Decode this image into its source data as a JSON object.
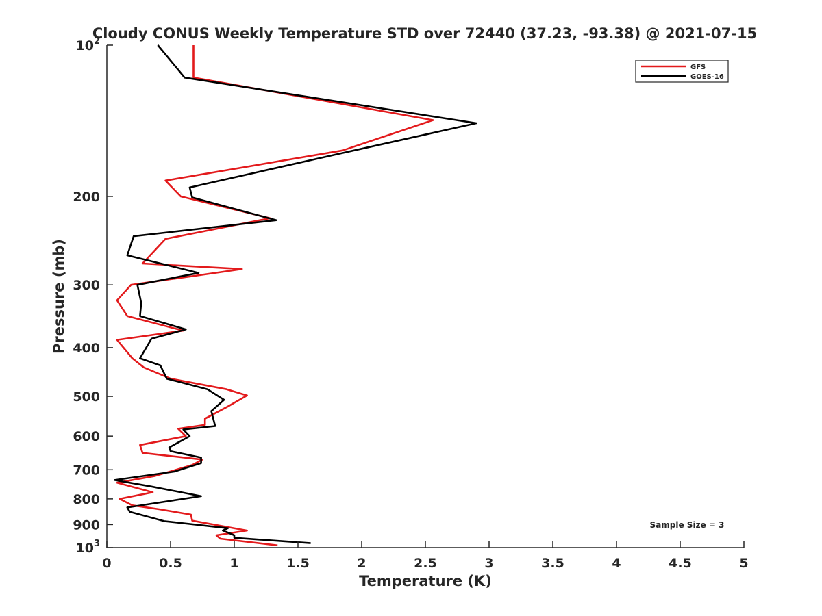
{
  "chart_data": {
    "type": "line",
    "title": "Cloudy CONUS Weekly Temperature STD over 72440 (37.23, -93.38) @ 2021-07-15",
    "xlabel": "Temperature (K)",
    "ylabel": "Pressure (mb)",
    "xlim": [
      0,
      5
    ],
    "ylim": [
      100,
      1000
    ],
    "y_scale": "log",
    "y_reversed": true,
    "grid": false,
    "legend_position": "top-right",
    "annotation": "Sample Size = 3",
    "x_ticks": [
      0,
      0.5,
      1,
      1.5,
      2,
      2.5,
      3,
      3.5,
      4,
      4.5,
      5
    ],
    "x_tick_labels": [
      "0",
      "0.5",
      "1",
      "1.5",
      "2",
      "2.5",
      "3",
      "3.5",
      "4",
      "4.5",
      "5"
    ],
    "y_ticks": [
      200,
      300,
      400,
      500,
      600,
      700,
      800,
      900
    ],
    "y_tick_labels": [
      "200",
      "300",
      "400",
      "500",
      "600",
      "700",
      "800",
      "900"
    ],
    "y_decade_ticks": [
      {
        "value": 100,
        "base": "10",
        "exp": "2"
      },
      {
        "value": 1000,
        "base": "10",
        "exp": "3"
      }
    ],
    "series": [
      {
        "name": "GFS",
        "color": "#e31a1c",
        "points": [
          [
            0.68,
            100
          ],
          [
            0.68,
            116
          ],
          [
            2.56,
            141
          ],
          [
            1.85,
            162
          ],
          [
            0.46,
            186
          ],
          [
            0.58,
            200
          ],
          [
            1.28,
            221
          ],
          [
            0.46,
            243
          ],
          [
            0.28,
            272
          ],
          [
            1.06,
            279
          ],
          [
            0.19,
            300
          ],
          [
            0.08,
            322
          ],
          [
            0.16,
            346
          ],
          [
            0.6,
            370
          ],
          [
            0.08,
            386
          ],
          [
            0.2,
            420
          ],
          [
            0.29,
            438
          ],
          [
            0.5,
            461
          ],
          [
            0.94,
            484
          ],
          [
            1.1,
            498
          ],
          [
            0.96,
            522
          ],
          [
            0.77,
            554
          ],
          [
            0.77,
            570
          ],
          [
            0.56,
            580
          ],
          [
            0.62,
            600
          ],
          [
            0.26,
            625
          ],
          [
            0.28,
            648
          ],
          [
            0.75,
            668
          ],
          [
            0.67,
            685
          ],
          [
            0.38,
            720
          ],
          [
            0.08,
            743
          ],
          [
            0.36,
            776
          ],
          [
            0.1,
            800
          ],
          [
            0.2,
            824
          ],
          [
            0.41,
            839
          ],
          [
            0.66,
            860
          ],
          [
            0.67,
            884
          ],
          [
            1.1,
            925
          ],
          [
            0.86,
            945
          ],
          [
            0.89,
            960
          ],
          [
            1.34,
            990
          ]
        ]
      },
      {
        "name": "GOES-16",
        "color": "#000000",
        "points": [
          [
            0.4,
            100
          ],
          [
            0.61,
            116
          ],
          [
            2.9,
            143
          ],
          [
            1.8,
            165
          ],
          [
            0.65,
            192
          ],
          [
            0.67,
            201
          ],
          [
            1.33,
            223
          ],
          [
            0.21,
            240
          ],
          [
            0.16,
            262
          ],
          [
            0.72,
            284
          ],
          [
            0.24,
            300
          ],
          [
            0.27,
            326
          ],
          [
            0.26,
            346
          ],
          [
            0.62,
            368
          ],
          [
            0.35,
            384
          ],
          [
            0.26,
            420
          ],
          [
            0.42,
            434
          ],
          [
            0.47,
            461
          ],
          [
            0.79,
            484
          ],
          [
            0.92,
            508
          ],
          [
            0.82,
            535
          ],
          [
            0.85,
            573
          ],
          [
            0.6,
            582
          ],
          [
            0.65,
            600
          ],
          [
            0.49,
            632
          ],
          [
            0.5,
            643
          ],
          [
            0.74,
            662
          ],
          [
            0.74,
            679
          ],
          [
            0.53,
            706
          ],
          [
            0.06,
            734
          ],
          [
            0.35,
            756
          ],
          [
            0.74,
            790
          ],
          [
            0.16,
            832
          ],
          [
            0.18,
            849
          ],
          [
            0.45,
            886
          ],
          [
            0.95,
            915
          ],
          [
            0.91,
            925
          ],
          [
            1.0,
            945
          ],
          [
            1.0,
            956
          ],
          [
            1.6,
            980
          ]
        ]
      }
    ]
  }
}
